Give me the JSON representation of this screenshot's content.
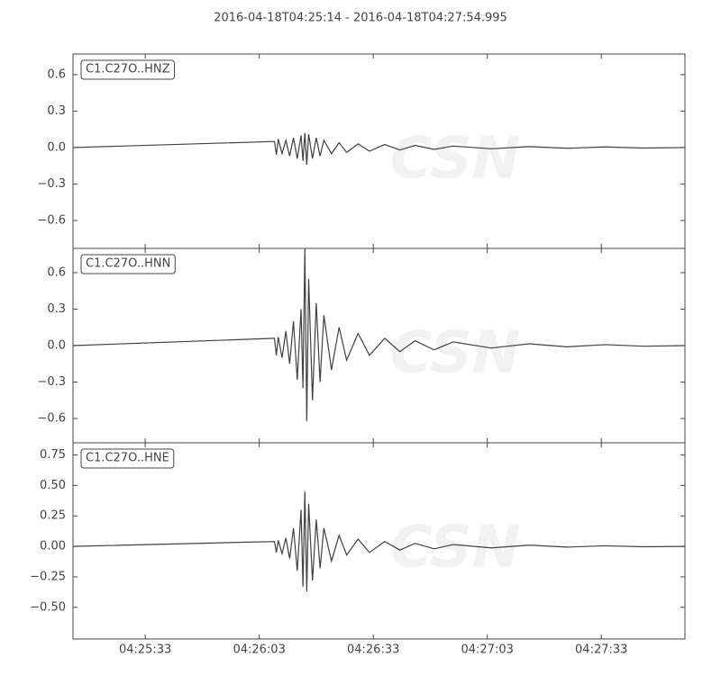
{
  "watermark": "CSN",
  "chart_data": [
    {
      "type": "line",
      "title": "2016-04-18T04:25:14  -  2016-04-18T04:27:54.995",
      "x": [
        0,
        53,
        53.5,
        54,
        55,
        56,
        57,
        58,
        59,
        60,
        60.5,
        61,
        61.5,
        62,
        63,
        64,
        65,
        66,
        68,
        70,
        72,
        75,
        78,
        82,
        86,
        90,
        95,
        100,
        110,
        120,
        130,
        140,
        150,
        161
      ],
      "series": [
        {
          "name": "C1.C27O..HNZ",
          "color": "#404040",
          "values": [
            0,
            0.05,
            -0.06,
            0.07,
            -0.05,
            0.06,
            -0.07,
            0.08,
            -0.09,
            0.1,
            -0.11,
            0.12,
            -0.14,
            0.11,
            -0.09,
            0.08,
            -0.07,
            0.06,
            -0.05,
            0.04,
            -0.04,
            0.03,
            -0.03,
            0.025,
            -0.02,
            0.018,
            -0.015,
            0.012,
            -0.01,
            0.008,
            -0.006,
            0.005,
            -0.004,
            0
          ]
        }
      ],
      "xlim": [
        0,
        160.995
      ],
      "ylim": [
        -0.83,
        0.77
      ],
      "yticks": [
        {
          "value": -0.6,
          "label": "−0.6"
        },
        {
          "value": -0.3,
          "label": "−0.3"
        },
        {
          "value": 0,
          "label": "0.0"
        },
        0.3,
        0.6
      ]
    },
    {
      "type": "line",
      "x": [
        0,
        53,
        53.5,
        54,
        55,
        56,
        57,
        58,
        59,
        60,
        60.5,
        61,
        61.5,
        62,
        63,
        64,
        65,
        66,
        68,
        70,
        72,
        75,
        78,
        82,
        86,
        90,
        95,
        100,
        110,
        120,
        130,
        140,
        150,
        161
      ],
      "series": [
        {
          "name": "C1.C27O..HNN",
          "color": "#404040",
          "values": [
            0,
            0.06,
            -0.08,
            0.07,
            -0.1,
            0.12,
            -0.15,
            0.2,
            -0.28,
            0.3,
            -0.35,
            0.8,
            -0.62,
            0.55,
            -0.45,
            0.35,
            -0.3,
            0.25,
            -0.2,
            0.15,
            -0.12,
            0.1,
            -0.08,
            0.06,
            -0.05,
            0.04,
            -0.035,
            0.03,
            -0.02,
            0.015,
            -0.01,
            0.008,
            -0.005,
            0
          ]
        }
      ],
      "xlim": [
        0,
        160.995
      ],
      "ylim": [
        -0.8,
        0.8
      ],
      "yticks": [
        {
          "value": -0.6,
          "label": "−0.6"
        },
        {
          "value": -0.3,
          "label": "−0.3"
        },
        {
          "value": 0,
          "label": "0.0"
        },
        0.3,
        0.6
      ]
    },
    {
      "type": "line",
      "x": [
        0,
        53,
        53.5,
        54,
        55,
        56,
        57,
        58,
        59,
        60,
        60.5,
        61,
        61.5,
        62,
        63,
        64,
        65,
        66,
        68,
        70,
        72,
        75,
        78,
        82,
        86,
        90,
        95,
        100,
        110,
        120,
        130,
        140,
        150,
        161
      ],
      "series": [
        {
          "name": "C1.C27O..HNE",
          "color": "#404040",
          "values": [
            0,
            0.04,
            -0.05,
            0.05,
            -0.06,
            0.07,
            -0.1,
            0.15,
            -0.2,
            0.3,
            -0.33,
            0.45,
            -0.37,
            0.35,
            -0.28,
            0.22,
            -0.18,
            0.15,
            -0.12,
            0.09,
            -0.07,
            0.06,
            -0.05,
            0.04,
            -0.03,
            0.025,
            -0.02,
            0.015,
            -0.012,
            0.01,
            -0.006,
            0.005,
            -0.003,
            0
          ]
        }
      ],
      "xlim": [
        0,
        160.995
      ],
      "ylim": [
        -0.76,
        0.85
      ],
      "yticks": [
        {
          "value": -0.5,
          "label": "−0.50"
        },
        {
          "value": -0.25,
          "label": "−0.25"
        },
        {
          "value": 0,
          "label": "0.00"
        },
        0.25,
        {
          "value": 0.5,
          "label": "0.50"
        },
        0.75
      ],
      "xticks": [
        {
          "value": 19,
          "label": "04:25:33"
        },
        {
          "value": 49,
          "label": "04:26:03"
        },
        {
          "value": 79,
          "label": "04:26:33"
        },
        {
          "value": 109,
          "label": "04:27:03"
        },
        {
          "value": 139,
          "label": "04:27:33"
        }
      ]
    }
  ]
}
